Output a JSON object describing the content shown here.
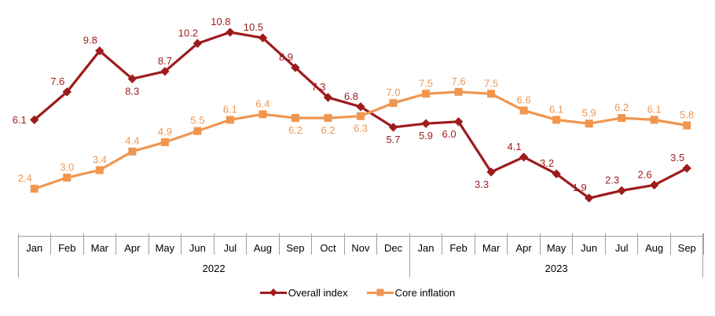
{
  "chart_data": {
    "type": "line",
    "title": "",
    "categories": [
      "Jan",
      "Feb",
      "Mar",
      "Apr",
      "May",
      "Jun",
      "Jul",
      "Aug",
      "Sep",
      "Oct",
      "Nov",
      "Dec",
      "Jan",
      "Feb",
      "Mar",
      "Apr",
      "May",
      "Jun",
      "Jul",
      "Aug",
      "Sep"
    ],
    "year_groups": [
      {
        "label": "2022",
        "span": 12
      },
      {
        "label": "2023",
        "span": 9
      }
    ],
    "series": [
      {
        "name": "Overall index",
        "color": "#9E1B1E",
        "marker": "diamond",
        "values": [
          6.1,
          7.6,
          9.8,
          8.3,
          8.7,
          10.2,
          10.8,
          10.5,
          8.9,
          7.3,
          6.8,
          5.7,
          5.9,
          6.0,
          3.3,
          4.1,
          3.2,
          1.9,
          2.3,
          2.6,
          3.5
        ],
        "label_positions": [
          "left",
          "above-left",
          "above-left",
          "below",
          "above",
          "above-left",
          "above-left",
          "above-left",
          "above-left",
          "above-left",
          "above-left",
          "below",
          "below",
          "below-left",
          "below-left",
          "above-left",
          "above-left",
          "above-left",
          "above-left",
          "above-left",
          "above-left"
        ]
      },
      {
        "name": "Core inflation",
        "color": "#F0964F",
        "marker": "square",
        "values": [
          2.4,
          3.0,
          3.4,
          4.4,
          4.9,
          5.5,
          6.1,
          6.4,
          6.2,
          6.2,
          6.3,
          7.0,
          7.5,
          7.6,
          7.5,
          6.6,
          6.1,
          5.9,
          6.2,
          6.1,
          5.8
        ],
        "label_positions": [
          "above-left",
          "above",
          "above",
          "above",
          "above",
          "above",
          "above",
          "above",
          "below",
          "below",
          "below",
          "above",
          "above",
          "above",
          "above",
          "above",
          "above",
          "above",
          "above",
          "above",
          "above"
        ]
      }
    ],
    "ylim": [
      0,
      11
    ],
    "grid": false,
    "value_labels": true,
    "legend_position": "bottom",
    "axis_color": "#A0A0A0",
    "text_color": "#000000",
    "background_color": "#FFFFFF"
  }
}
